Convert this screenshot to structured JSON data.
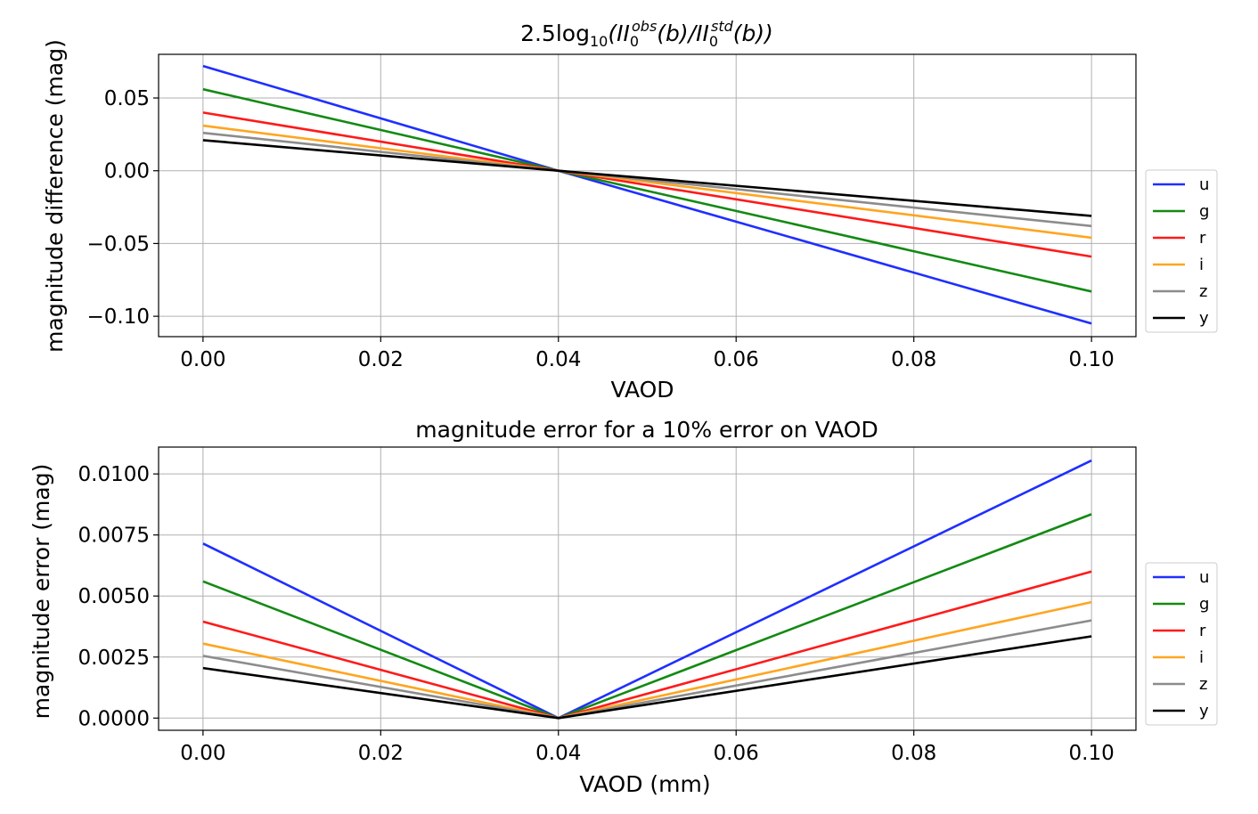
{
  "chart_data": [
    {
      "type": "line",
      "title_main": "2.5log",
      "title_sub10": "10",
      "title_rest": "(II",
      "title_sub0a": "0",
      "title_supobs": "obs",
      "title_mid": "(b)/II",
      "title_sub0b": "0",
      "title_supstd": "std",
      "title_end": "(b))",
      "xlabel": "VAOD",
      "ylabel": "magnitude difference (mag)",
      "xlim": [
        -0.005,
        0.105
      ],
      "ylim": [
        -0.114,
        0.08
      ],
      "xticks": [
        0.0,
        0.02,
        0.04,
        0.06,
        0.08,
        0.1
      ],
      "xtick_labels": [
        "0.00",
        "0.02",
        "0.04",
        "0.06",
        "0.08",
        "0.10"
      ],
      "yticks": [
        0.05,
        0.0,
        -0.05,
        -0.1
      ],
      "ytick_labels": [
        "0.05",
        "0.00",
        "−0.05",
        "−0.10"
      ],
      "grid": true,
      "legend": "center-right-outside",
      "x": [
        0.0,
        0.04,
        0.1
      ],
      "series": [
        {
          "name": "u",
          "color": "#1f2fff",
          "values": [
            0.072,
            0.0,
            -0.105
          ]
        },
        {
          "name": "g",
          "color": "#138a13",
          "values": [
            0.056,
            0.0,
            -0.083
          ]
        },
        {
          "name": "r",
          "color": "#ff1a1a",
          "values": [
            0.04,
            0.0,
            -0.059
          ]
        },
        {
          "name": "i",
          "color": "#ffa520",
          "values": [
            0.031,
            0.0,
            -0.046
          ]
        },
        {
          "name": "z",
          "color": "#8c8c8c",
          "values": [
            0.026,
            0.0,
            -0.038
          ]
        },
        {
          "name": "y",
          "color": "#000000",
          "values": [
            0.021,
            0.0,
            -0.031
          ]
        }
      ]
    },
    {
      "type": "line",
      "title": "magnitude error for a 10% error on VAOD",
      "xlabel": "VAOD (mm)",
      "ylabel": "magnitude error (mag)",
      "xlim": [
        -0.005,
        0.105
      ],
      "ylim": [
        -0.0005,
        0.0111
      ],
      "xticks": [
        0.0,
        0.02,
        0.04,
        0.06,
        0.08,
        0.1
      ],
      "xtick_labels": [
        "0.00",
        "0.02",
        "0.04",
        "0.06",
        "0.08",
        "0.10"
      ],
      "yticks": [
        0.0,
        0.0025,
        0.005,
        0.0075,
        0.01
      ],
      "ytick_labels": [
        "0.0000",
        "0.0025",
        "0.0050",
        "0.0075",
        "0.0100"
      ],
      "grid": true,
      "legend": "center-right-outside",
      "x": [
        0.0,
        0.04,
        0.1
      ],
      "series": [
        {
          "name": "u",
          "color": "#1f2fff",
          "values": [
            0.00715,
            0.0,
            0.01055
          ]
        },
        {
          "name": "g",
          "color": "#138a13",
          "values": [
            0.0056,
            0.0,
            0.00835
          ]
        },
        {
          "name": "r",
          "color": "#ff1a1a",
          "values": [
            0.00395,
            0.0,
            0.006
          ]
        },
        {
          "name": "i",
          "color": "#ffa520",
          "values": [
            0.00305,
            0.0,
            0.00475
          ]
        },
        {
          "name": "z",
          "color": "#8c8c8c",
          "values": [
            0.00255,
            0.0,
            0.004
          ]
        },
        {
          "name": "y",
          "color": "#000000",
          "values": [
            0.00205,
            0.0,
            0.00335
          ]
        }
      ]
    }
  ]
}
